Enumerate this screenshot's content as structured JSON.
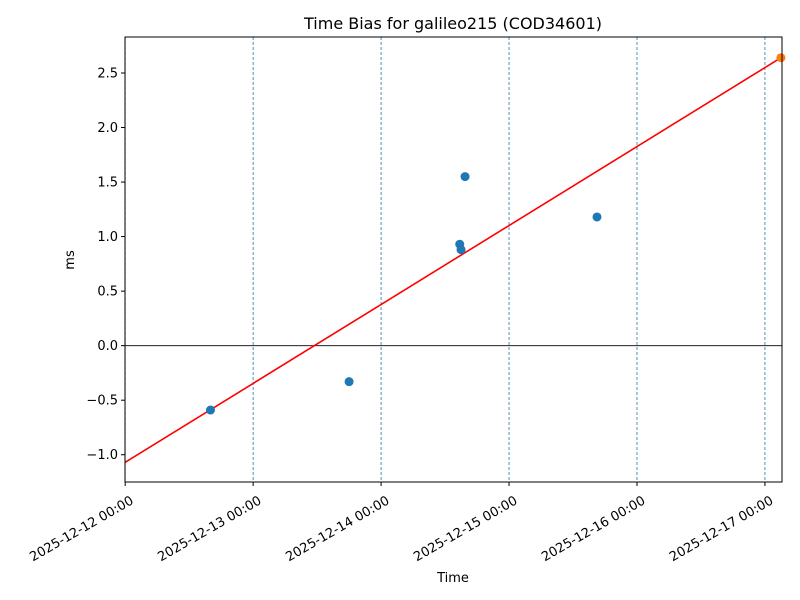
{
  "chart_data": {
    "type": "scatter",
    "title": "Time Bias for galileo215 (COD34601)",
    "xlabel": "Time",
    "ylabel": "ms",
    "x_range": [
      "2025-12-11T23:58:00",
      "2025-12-17T03:12:00"
    ],
    "ylim": [
      -1.25,
      2.83
    ],
    "x_ticks": [
      {
        "value": "2025-12-12T00:00:00",
        "label": "2025-12-12 00:00"
      },
      {
        "value": "2025-12-13T00:00:00",
        "label": "2025-12-13 00:00"
      },
      {
        "value": "2025-12-14T00:00:00",
        "label": "2025-12-14 00:00"
      },
      {
        "value": "2025-12-15T00:00:00",
        "label": "2025-12-15 00:00"
      },
      {
        "value": "2025-12-16T00:00:00",
        "label": "2025-12-16 00:00"
      },
      {
        "value": "2025-12-17T00:00:00",
        "label": "2025-12-17 00:00"
      }
    ],
    "y_ticks": [
      {
        "value": -1.0,
        "label": "−1.0"
      },
      {
        "value": -0.5,
        "label": "−0.5"
      },
      {
        "value": 0.0,
        "label": "0.0"
      },
      {
        "value": 0.5,
        "label": "0.5"
      },
      {
        "value": 1.0,
        "label": "1.0"
      },
      {
        "value": 1.5,
        "label": "1.5"
      },
      {
        "value": 2.0,
        "label": "2.0"
      },
      {
        "value": 2.5,
        "label": "2.5"
      }
    ],
    "grid": "vertical dashed at day boundaries",
    "zero_line": true,
    "series": [
      {
        "kind": "scatter",
        "color": "#1f77b4",
        "points": [
          {
            "x": "2025-12-12T16:00:00",
            "y": -0.59
          },
          {
            "x": "2025-12-13T18:00:00",
            "y": -0.33
          },
          {
            "x": "2025-12-14T14:45:00",
            "y": 0.93
          },
          {
            "x": "2025-12-14T15:00:00",
            "y": 0.88
          },
          {
            "x": "2025-12-14T15:45:00",
            "y": 1.55
          },
          {
            "x": "2025-12-15T16:30:00",
            "y": 1.18
          }
        ]
      },
      {
        "kind": "scatter",
        "color": "#ff7f0e",
        "points": [
          {
            "x": "2025-12-17T03:00:00",
            "y": 2.64
          }
        ]
      },
      {
        "kind": "line",
        "color": "#ff0000",
        "points": [
          {
            "x": "2025-12-12T00:00:00",
            "y": -1.07
          },
          {
            "x": "2025-12-17T03:00:00",
            "y": 2.64
          }
        ]
      }
    ]
  }
}
